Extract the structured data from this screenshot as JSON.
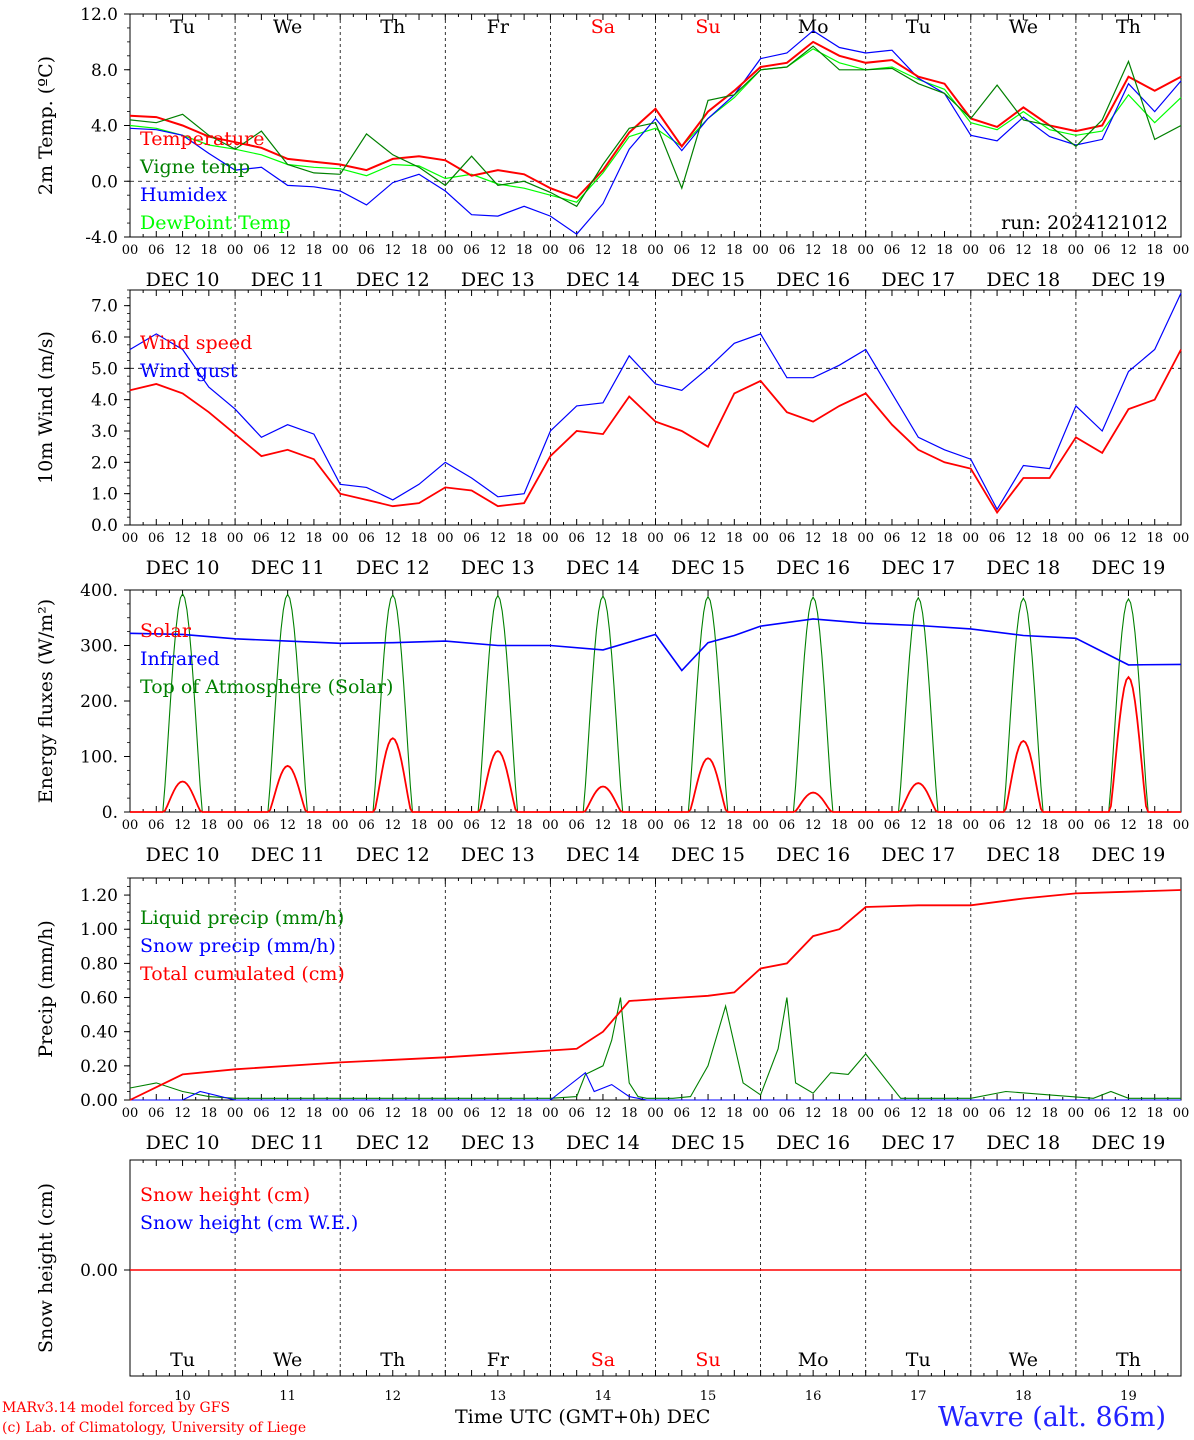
{
  "footer": {
    "model_line": "MARv3.14 model forced by GFS",
    "lab_line": "(c) Lab. of Climatology, University of Liege",
    "x_caption": "Time UTC (GMT+0h)",
    "x_caption_month": "DEC",
    "station": "Wavre (alt. 86m)"
  },
  "colors": {
    "red": "#ff0000",
    "blue": "#0000ff",
    "dark_green": "#008000",
    "light_green": "#00ff00",
    "grid": "#000000",
    "station": "#2222ff"
  },
  "chart_data": [
    {
      "type": "line",
      "ylabel": "2m Temp. (ºC)",
      "ylim": [
        -4,
        12
      ],
      "yticks": [
        "-4.0",
        "0.0",
        "4.0",
        "8.0",
        "12.0"
      ],
      "reference_line": 0,
      "day_labels": [
        "Tu",
        "We",
        "Th",
        "Fr",
        "Sa",
        "Su",
        "Mo",
        "Tu",
        "We",
        "Th"
      ],
      "weekend_labels": [
        "Sa",
        "Su"
      ],
      "date_labels": [
        "DEC 10",
        "DEC 11",
        "DEC 12",
        "DEC 13",
        "DEC 14",
        "DEC 15",
        "DEC 16",
        "DEC 17",
        "DEC 18",
        "DEC 19"
      ],
      "hour_ticks": [
        "00",
        "06",
        "12",
        "18"
      ],
      "annotation": "run: 2024121012",
      "x_unit": "hours since DEC 10 00 UTC",
      "series": [
        {
          "name": "Temperature",
          "color": "#ff0000",
          "x": [
            0,
            6,
            12,
            18,
            24,
            30,
            36,
            42,
            48,
            54,
            60,
            66,
            72,
            78,
            84,
            90,
            96,
            102,
            108,
            114,
            120,
            126,
            132,
            138,
            144,
            150,
            156,
            162,
            168,
            174,
            180,
            186,
            192,
            198,
            204,
            210,
            216,
            222,
            228,
            234,
            240
          ],
          "values": [
            4.7,
            4.6,
            4.0,
            3.2,
            2.8,
            2.4,
            1.6,
            1.4,
            1.2,
            0.8,
            1.6,
            1.8,
            1.5,
            0.4,
            0.8,
            0.5,
            -0.5,
            -1.2,
            0.8,
            3.5,
            5.2,
            2.5,
            5.0,
            6.5,
            8.2,
            8.5,
            10.0,
            9.0,
            8.5,
            8.7,
            7.5,
            7.0,
            4.5,
            3.9,
            5.3,
            4.0,
            3.6,
            4.0,
            7.5,
            6.5,
            7.5
          ]
        },
        {
          "name": "Vigne temp",
          "color": "#008000",
          "x": [
            0,
            6,
            12,
            18,
            24,
            30,
            36,
            42,
            48,
            54,
            60,
            66,
            72,
            78,
            84,
            90,
            96,
            102,
            108,
            114,
            120,
            126,
            132,
            138,
            144,
            150,
            156,
            162,
            168,
            174,
            180,
            186,
            192,
            198,
            204,
            210,
            216,
            222,
            228,
            234,
            240
          ],
          "values": [
            4.4,
            4.2,
            4.8,
            3.3,
            2.3,
            3.6,
            1.2,
            0.6,
            0.5,
            3.4,
            1.9,
            1.0,
            -0.3,
            1.8,
            -0.3,
            0.0,
            -0.8,
            -1.8,
            1.2,
            3.8,
            4.2,
            -0.5,
            5.8,
            6.2,
            8.0,
            8.2,
            9.7,
            8.0,
            8.0,
            8.1,
            7.0,
            6.3,
            4.5,
            6.9,
            4.4,
            4.0,
            2.5,
            4.4,
            8.6,
            3.0,
            4.0
          ]
        },
        {
          "name": "Humidex",
          "color": "#0000ff",
          "x": [
            0,
            6,
            12,
            18,
            24,
            30,
            36,
            42,
            48,
            54,
            60,
            66,
            72,
            78,
            84,
            90,
            96,
            102,
            108,
            114,
            120,
            126,
            132,
            138,
            144,
            150,
            156,
            162,
            168,
            174,
            180,
            186,
            192,
            198,
            204,
            210,
            216,
            222,
            228,
            234,
            240
          ],
          "values": [
            3.8,
            3.7,
            3.3,
            2.0,
            0.8,
            1.0,
            -0.3,
            -0.4,
            -0.7,
            -1.7,
            -0.1,
            0.5,
            -0.7,
            -2.4,
            -2.5,
            -1.8,
            -2.5,
            -3.8,
            -1.6,
            2.3,
            4.5,
            2.2,
            4.5,
            6.2,
            8.8,
            9.2,
            10.8,
            9.6,
            9.2,
            9.4,
            7.4,
            6.3,
            3.3,
            2.9,
            4.6,
            3.2,
            2.6,
            3.0,
            7.0,
            5.0,
            7.2
          ]
        },
        {
          "name": "DewPoint Temp",
          "color": "#00ff00",
          "x": [
            0,
            6,
            12,
            18,
            24,
            30,
            36,
            42,
            48,
            54,
            60,
            66,
            72,
            78,
            84,
            90,
            96,
            102,
            108,
            114,
            120,
            126,
            132,
            138,
            144,
            150,
            156,
            162,
            168,
            174,
            180,
            186,
            192,
            198,
            204,
            210,
            216,
            222,
            228,
            234,
            240
          ],
          "values": [
            4.0,
            3.8,
            3.3,
            2.6,
            2.3,
            1.9,
            1.2,
            1.0,
            0.9,
            0.4,
            1.2,
            1.1,
            0.2,
            0.5,
            -0.2,
            -0.5,
            -1.0,
            -1.5,
            0.6,
            3.2,
            3.8,
            2.5,
            4.5,
            6.0,
            8.0,
            8.2,
            9.5,
            8.5,
            8.0,
            8.2,
            7.3,
            6.6,
            4.2,
            3.7,
            5.0,
            3.7,
            3.3,
            3.6,
            6.2,
            4.2,
            6.0
          ]
        }
      ]
    },
    {
      "type": "line",
      "ylabel": "10m Wind (m/s)",
      "ylim": [
        0,
        7.5
      ],
      "yticks": [
        "0.0",
        "1.0",
        "2.0",
        "3.0",
        "4.0",
        "5.0",
        "6.0",
        "7.0"
      ],
      "reference_line": 5,
      "hour_ticks": [
        "00",
        "06",
        "12",
        "18"
      ],
      "date_labels": [
        "DEC 10",
        "DEC 11",
        "DEC 12",
        "DEC 13",
        "DEC 14",
        "DEC 15",
        "DEC 16",
        "DEC 17",
        "DEC 18",
        "DEC 19"
      ],
      "series": [
        {
          "name": "Wind speed",
          "color": "#ff0000",
          "x": [
            0,
            6,
            12,
            18,
            24,
            30,
            36,
            42,
            48,
            54,
            60,
            66,
            72,
            78,
            84,
            90,
            96,
            102,
            108,
            114,
            120,
            126,
            132,
            138,
            144,
            150,
            156,
            162,
            168,
            174,
            180,
            186,
            192,
            198,
            204,
            210,
            216,
            222,
            228,
            234,
            240
          ],
          "values": [
            4.3,
            4.5,
            4.2,
            3.6,
            2.9,
            2.2,
            2.4,
            2.1,
            1.0,
            0.8,
            0.6,
            0.7,
            1.2,
            1.1,
            0.6,
            0.7,
            2.2,
            3.0,
            2.9,
            4.1,
            3.3,
            3.0,
            2.5,
            4.2,
            4.6,
            3.6,
            3.3,
            3.8,
            4.2,
            3.2,
            2.4,
            2.0,
            1.8,
            0.4,
            1.5,
            1.5,
            2.8,
            2.3,
            3.7,
            4.0,
            5.6
          ]
        },
        {
          "name": "Wind gust",
          "color": "#0000ff",
          "x": [
            0,
            6,
            12,
            18,
            24,
            30,
            36,
            42,
            48,
            54,
            60,
            66,
            72,
            78,
            84,
            90,
            96,
            102,
            108,
            114,
            120,
            126,
            132,
            138,
            144,
            150,
            156,
            162,
            168,
            174,
            180,
            186,
            192,
            198,
            204,
            210,
            216,
            222,
            228,
            234,
            240
          ],
          "values": [
            5.6,
            6.1,
            5.6,
            4.4,
            3.7,
            2.8,
            3.2,
            2.9,
            1.3,
            1.2,
            0.8,
            1.3,
            2.0,
            1.5,
            0.9,
            1.0,
            3.0,
            3.8,
            3.9,
            5.4,
            4.5,
            4.3,
            5.0,
            5.8,
            6.1,
            4.7,
            4.7,
            5.1,
            5.6,
            4.2,
            2.8,
            2.4,
            2.1,
            0.5,
            1.9,
            1.8,
            3.8,
            3.0,
            4.9,
            5.6,
            7.4
          ]
        }
      ]
    },
    {
      "type": "line",
      "ylabel": "Energy fluxes (W/m²)",
      "ylim": [
        0,
        400
      ],
      "yticks": [
        "0.",
        "100.",
        "200.",
        "300.",
        "400."
      ],
      "hour_ticks": [
        "00",
        "06",
        "12",
        "18"
      ],
      "date_labels": [
        "DEC 10",
        "DEC 11",
        "DEC 12",
        "DEC 13",
        "DEC 14",
        "DEC 15",
        "DEC 16",
        "DEC 17",
        "DEC 18",
        "DEC 19"
      ],
      "series": [
        {
          "name": "Solar",
          "color": "#ff0000",
          "daily_peak_utc_hour": 12,
          "daily_peaks": [
            55,
            83,
            133,
            110,
            46,
            97,
            35,
            52,
            128,
            243
          ]
        },
        {
          "name": "Infrared",
          "color": "#0000ff",
          "x": [
            0,
            12,
            24,
            36,
            48,
            60,
            72,
            84,
            96,
            108,
            120,
            126,
            132,
            138,
            144,
            156,
            168,
            180,
            192,
            204,
            216,
            228,
            240
          ],
          "values": [
            322,
            320,
            312,
            308,
            304,
            305,
            308,
            300,
            300,
            292,
            320,
            255,
            305,
            318,
            335,
            348,
            340,
            336,
            330,
            318,
            313,
            265,
            266
          ]
        },
        {
          "name": "Top of Atmosphere (Solar)",
          "color": "#008000",
          "daily_peak_utc_hour": 12,
          "daily_peaks": [
            393,
            392,
            391,
            390,
            389,
            388,
            387,
            386,
            385,
            384
          ]
        }
      ]
    },
    {
      "type": "line",
      "ylabel": "Precip (mm/h)",
      "ylim": [
        0,
        1.3
      ],
      "yticks": [
        "0.00",
        "0.20",
        "0.40",
        "0.60",
        "0.80",
        "1.00",
        "1.20"
      ],
      "hour_ticks": [
        "00",
        "06",
        "12",
        "18"
      ],
      "date_labels": [
        "DEC 10",
        "DEC 11",
        "DEC 12",
        "DEC 13",
        "DEC 14",
        "DEC 15",
        "DEC 16",
        "DEC 17",
        "DEC 18",
        "DEC 19"
      ],
      "series": [
        {
          "name": "Liquid precip (mm/h)",
          "color": "#008000",
          "x": [
            0,
            6,
            12,
            18,
            24,
            48,
            96,
            102,
            104,
            108,
            110,
            112,
            114,
            116,
            118,
            120,
            124,
            128,
            132,
            136,
            140,
            144,
            148,
            150,
            152,
            156,
            160,
            164,
            168,
            176,
            192,
            200,
            210,
            220,
            224,
            228,
            232,
            240
          ],
          "values": [
            0.07,
            0.1,
            0.05,
            0.02,
            0.01,
            0.01,
            0.01,
            0.02,
            0.15,
            0.2,
            0.35,
            0.6,
            0.1,
            0.02,
            0.01,
            0.01,
            0.01,
            0.02,
            0.2,
            0.55,
            0.1,
            0.03,
            0.3,
            0.6,
            0.1,
            0.04,
            0.16,
            0.15,
            0.27,
            0.01,
            0.01,
            0.05,
            0.03,
            0.01,
            0.05,
            0.01,
            0.01,
            0.01
          ]
        },
        {
          "name": "Snow precip (mm/h)",
          "color": "#0000ff",
          "x": [
            0,
            12,
            16,
            24,
            96,
            104,
            106,
            110,
            114,
            118,
            120,
            240
          ],
          "values": [
            0.0,
            0.0,
            0.05,
            0.0,
            0.0,
            0.16,
            0.05,
            0.09,
            0.02,
            0.0,
            0.0,
            0.0
          ]
        },
        {
          "name": "Total cumulated (cm)",
          "color": "#ff0000",
          "x": [
            0,
            12,
            24,
            48,
            72,
            96,
            102,
            108,
            114,
            120,
            126,
            132,
            138,
            144,
            150,
            156,
            162,
            168,
            180,
            192,
            204,
            216,
            228,
            240
          ],
          "values": [
            0.0,
            0.15,
            0.18,
            0.22,
            0.25,
            0.29,
            0.3,
            0.4,
            0.58,
            0.59,
            0.6,
            0.61,
            0.63,
            0.77,
            0.8,
            0.96,
            1.0,
            1.13,
            1.14,
            1.14,
            1.18,
            1.21,
            1.22,
            1.23
          ]
        }
      ]
    },
    {
      "type": "line",
      "ylabel": "Snow height (cm)",
      "yticks": [
        "0.00"
      ],
      "day_labels": [
        "Tu",
        "We",
        "Th",
        "Fr",
        "Sa",
        "Su",
        "Mo",
        "Tu",
        "We",
        "Th"
      ],
      "weekend_labels": [
        "Sa",
        "Su"
      ],
      "day_numbers": [
        "10",
        "11",
        "12",
        "13",
        "14",
        "15",
        "16",
        "17",
        "18",
        "19"
      ],
      "series": [
        {
          "name": "Snow height (cm)",
          "color": "#ff0000",
          "values": [
            0.0,
            0.0
          ]
        },
        {
          "name": "Snow height (cm W.E.)",
          "color": "#0000ff",
          "values": []
        }
      ]
    }
  ]
}
